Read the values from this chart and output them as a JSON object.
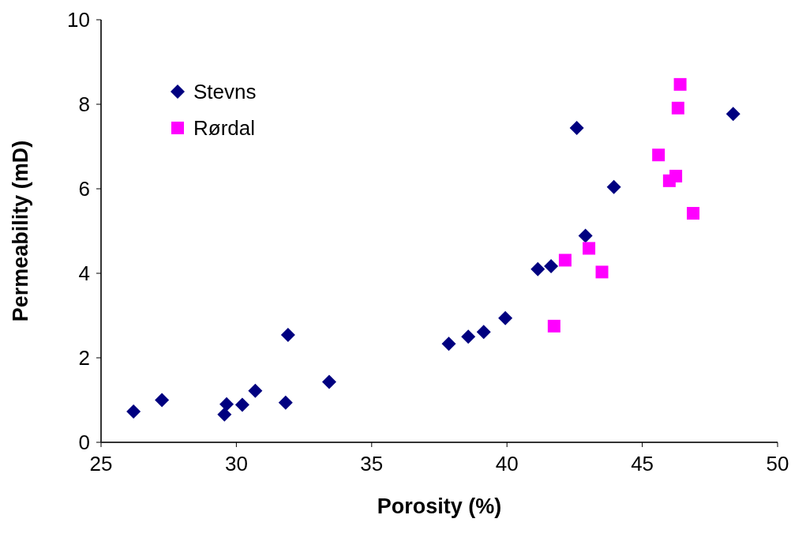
{
  "chart_data": {
    "type": "scatter",
    "xlabel": "Porosity (%)",
    "ylabel": "Permeability (mD)",
    "xlim": [
      25,
      50
    ],
    "xticks": [
      25,
      30,
      35,
      40,
      45,
      50
    ],
    "ylim": [
      0,
      10
    ],
    "yticks": [
      0,
      2,
      4,
      6,
      8,
      10
    ],
    "grid": false,
    "legend": "top left",
    "series": [
      {
        "name": "Stevns",
        "color": "#000080",
        "marker": "diamond",
        "x": [
          26.2,
          27.25,
          29.56,
          29.64,
          30.22,
          30.7,
          31.82,
          31.91,
          33.43,
          37.85,
          38.57,
          39.14,
          39.94,
          41.14,
          41.63,
          42.9,
          42.58,
          43.95,
          48.36
        ],
        "values": [
          0.73,
          1.0,
          0.66,
          0.9,
          0.89,
          1.22,
          0.94,
          2.54,
          1.43,
          2.33,
          2.5,
          2.61,
          2.94,
          4.1,
          4.17,
          4.89,
          7.44,
          6.04,
          7.77
        ]
      },
      {
        "name": "Rørdal",
        "color": "#ff00ff",
        "marker": "square",
        "x": [
          46.4,
          46.32,
          45.6,
          46.24,
          46.0,
          46.88,
          43.03,
          42.15,
          43.51,
          41.74
        ],
        "values": [
          8.47,
          7.91,
          6.8,
          6.3,
          6.19,
          5.42,
          4.59,
          4.31,
          4.03,
          2.75
        ]
      }
    ]
  }
}
